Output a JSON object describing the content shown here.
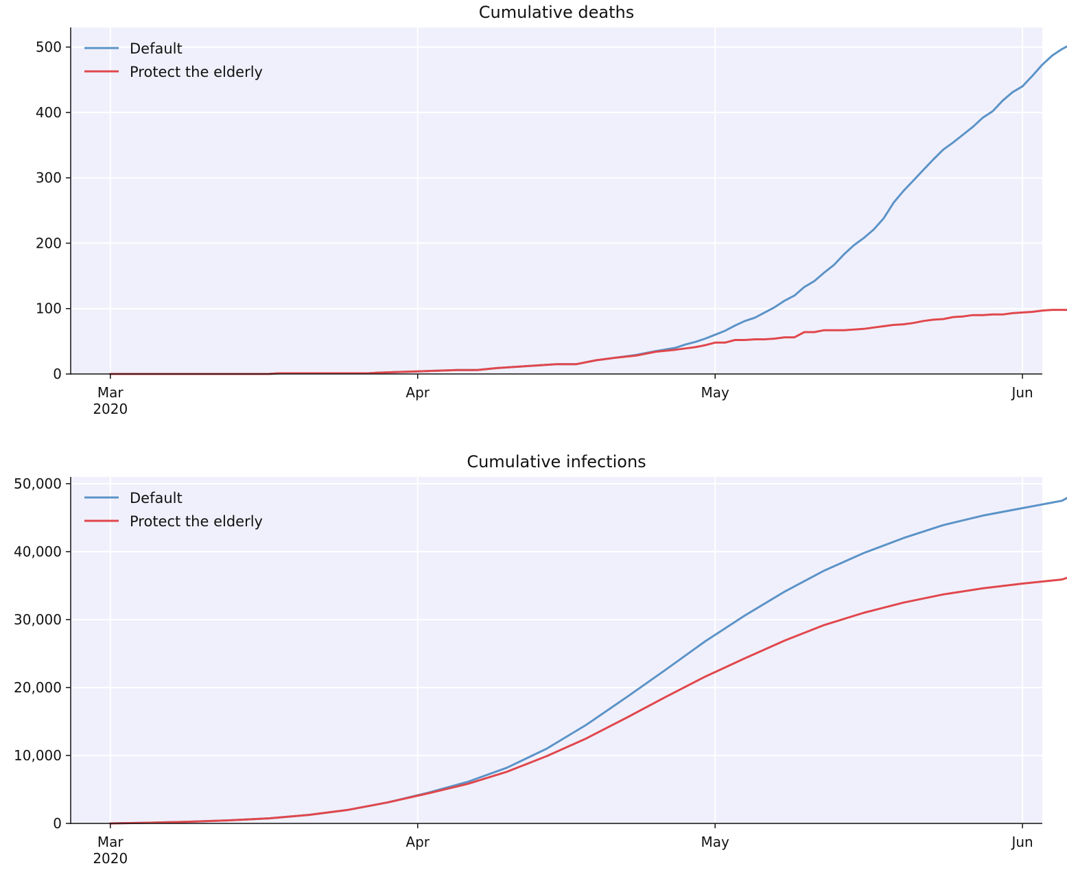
{
  "chart_data": [
    {
      "type": "line",
      "title": "Cumulative deaths",
      "xlabel": "",
      "ylabel": "",
      "x_tick_labels": [
        {
          "date": "2020-03-01",
          "label": "Mar",
          "sublabel": "2020"
        },
        {
          "date": "2020-04-01",
          "label": "Apr",
          "sublabel": ""
        },
        {
          "date": "2020-05-01",
          "label": "May",
          "sublabel": ""
        },
        {
          "date": "2020-06-01",
          "label": "Jun",
          "sublabel": ""
        }
      ],
      "y_ticks": [
        0,
        100,
        200,
        300,
        400,
        500
      ],
      "y_tick_labels": [
        "0",
        "100",
        "200",
        "300",
        "400",
        "500"
      ],
      "xlim": [
        "2020-02-26",
        "2020-06-03"
      ],
      "ylim": [
        0,
        530
      ],
      "grid": true,
      "legend_position": "top-left",
      "background": "#f0f0fc",
      "series": [
        {
          "name": "Default",
          "color": "#5b93c7",
          "points": [
            [
              "2020-03-01",
              0
            ],
            [
              "2020-03-09",
              0
            ],
            [
              "2020-03-17",
              0
            ],
            [
              "2020-03-18",
              1
            ],
            [
              "2020-03-27",
              1
            ],
            [
              "2020-03-28",
              2
            ],
            [
              "2020-03-30",
              3
            ],
            [
              "2020-04-01",
              4
            ],
            [
              "2020-04-03",
              5
            ],
            [
              "2020-04-05",
              6
            ],
            [
              "2020-04-07",
              6
            ],
            [
              "2020-04-09",
              9
            ],
            [
              "2020-04-11",
              11
            ],
            [
              "2020-04-13",
              13
            ],
            [
              "2020-04-15",
              15
            ],
            [
              "2020-04-17",
              15
            ],
            [
              "2020-04-19",
              21
            ],
            [
              "2020-04-21",
              25
            ],
            [
              "2020-04-23",
              29
            ],
            [
              "2020-04-25",
              35
            ],
            [
              "2020-04-27",
              40
            ],
            [
              "2020-04-28",
              45
            ],
            [
              "2020-04-29",
              49
            ],
            [
              "2020-04-30",
              54
            ],
            [
              "2020-05-01",
              60
            ],
            [
              "2020-05-02",
              66
            ],
            [
              "2020-05-03",
              74
            ],
            [
              "2020-05-04",
              81
            ],
            [
              "2020-05-05",
              86
            ],
            [
              "2020-05-06",
              94
            ],
            [
              "2020-05-07",
              102
            ],
            [
              "2020-05-08",
              112
            ],
            [
              "2020-05-09",
              120
            ],
            [
              "2020-05-10",
              133
            ],
            [
              "2020-05-11",
              142
            ],
            [
              "2020-05-12",
              155
            ],
            [
              "2020-05-13",
              167
            ],
            [
              "2020-05-14",
              183
            ],
            [
              "2020-05-15",
              197
            ],
            [
              "2020-05-16",
              208
            ],
            [
              "2020-05-17",
              221
            ],
            [
              "2020-05-18",
              238
            ],
            [
              "2020-05-19",
              262
            ],
            [
              "2020-05-20",
              280
            ],
            [
              "2020-05-21",
              296
            ],
            [
              "2020-05-22",
              312
            ],
            [
              "2020-05-23",
              328
            ],
            [
              "2020-05-24",
              343
            ],
            [
              "2020-05-25",
              354
            ],
            [
              "2020-05-26",
              366
            ],
            [
              "2020-05-27",
              378
            ],
            [
              "2020-05-28",
              392
            ],
            [
              "2020-05-29",
              402
            ],
            [
              "2020-05-30",
              418
            ],
            [
              "2020-05-31",
              431
            ],
            [
              "2020-06-01",
              440
            ],
            [
              "2020-06-02",
              456
            ],
            [
              "2020-06-03",
              473
            ],
            [
              "2020-06-04",
              487
            ],
            [
              "2020-06-05",
              497
            ],
            [
              "2020-06-06",
              505
            ]
          ]
        },
        {
          "name": "Protect the elderly",
          "color": "#e0474c",
          "points": [
            [
              "2020-03-01",
              0
            ],
            [
              "2020-03-09",
              0
            ],
            [
              "2020-03-17",
              0
            ],
            [
              "2020-03-18",
              1
            ],
            [
              "2020-03-27",
              1
            ],
            [
              "2020-03-28",
              2
            ],
            [
              "2020-03-30",
              3
            ],
            [
              "2020-04-01",
              4
            ],
            [
              "2020-04-03",
              5
            ],
            [
              "2020-04-05",
              6
            ],
            [
              "2020-04-07",
              6
            ],
            [
              "2020-04-09",
              9
            ],
            [
              "2020-04-11",
              11
            ],
            [
              "2020-04-13",
              13
            ],
            [
              "2020-04-15",
              15
            ],
            [
              "2020-04-17",
              15
            ],
            [
              "2020-04-19",
              21
            ],
            [
              "2020-04-21",
              25
            ],
            [
              "2020-04-23",
              28
            ],
            [
              "2020-04-25",
              34
            ],
            [
              "2020-04-27",
              37
            ],
            [
              "2020-04-28",
              39
            ],
            [
              "2020-04-29",
              41
            ],
            [
              "2020-04-30",
              44
            ],
            [
              "2020-05-01",
              48
            ],
            [
              "2020-05-02",
              48
            ],
            [
              "2020-05-03",
              52
            ],
            [
              "2020-05-04",
              52
            ],
            [
              "2020-05-05",
              53
            ],
            [
              "2020-05-06",
              53
            ],
            [
              "2020-05-07",
              54
            ],
            [
              "2020-05-08",
              56
            ],
            [
              "2020-05-09",
              56
            ],
            [
              "2020-05-10",
              64
            ],
            [
              "2020-05-11",
              64
            ],
            [
              "2020-05-12",
              67
            ],
            [
              "2020-05-13",
              67
            ],
            [
              "2020-05-14",
              67
            ],
            [
              "2020-05-15",
              68
            ],
            [
              "2020-05-16",
              69
            ],
            [
              "2020-05-17",
              71
            ],
            [
              "2020-05-18",
              73
            ],
            [
              "2020-05-19",
              75
            ],
            [
              "2020-05-20",
              76
            ],
            [
              "2020-05-21",
              78
            ],
            [
              "2020-05-22",
              81
            ],
            [
              "2020-05-23",
              83
            ],
            [
              "2020-05-24",
              84
            ],
            [
              "2020-05-25",
              87
            ],
            [
              "2020-05-26",
              88
            ],
            [
              "2020-05-27",
              90
            ],
            [
              "2020-05-28",
              90
            ],
            [
              "2020-05-29",
              91
            ],
            [
              "2020-05-30",
              91
            ],
            [
              "2020-05-31",
              93
            ],
            [
              "2020-06-01",
              94
            ],
            [
              "2020-06-02",
              95
            ],
            [
              "2020-06-03",
              97
            ],
            [
              "2020-06-04",
              98
            ],
            [
              "2020-06-05",
              98
            ],
            [
              "2020-06-06",
              98
            ]
          ]
        }
      ]
    },
    {
      "type": "line",
      "title": "Cumulative infections",
      "xlabel": "",
      "ylabel": "",
      "x_tick_labels": [
        {
          "date": "2020-03-01",
          "label": "Mar",
          "sublabel": "2020"
        },
        {
          "date": "2020-04-01",
          "label": "Apr",
          "sublabel": ""
        },
        {
          "date": "2020-05-01",
          "label": "May",
          "sublabel": ""
        },
        {
          "date": "2020-06-01",
          "label": "Jun",
          "sublabel": ""
        }
      ],
      "y_ticks": [
        0,
        10000,
        20000,
        30000,
        40000,
        50000
      ],
      "y_tick_labels": [
        "0",
        "10,000",
        "20,000",
        "30,000",
        "40,000",
        "50,000"
      ],
      "xlim": [
        "2020-02-26",
        "2020-06-03"
      ],
      "ylim": [
        0,
        51000
      ],
      "grid": true,
      "legend_position": "top-left",
      "background": "#f0f0fc",
      "series": [
        {
          "name": "Default",
          "color": "#5b93c7",
          "points": [
            [
              "2020-03-01",
              0
            ],
            [
              "2020-03-05",
              100
            ],
            [
              "2020-03-09",
              250
            ],
            [
              "2020-03-13",
              450
            ],
            [
              "2020-03-17",
              750
            ],
            [
              "2020-03-21",
              1250
            ],
            [
              "2020-03-25",
              2000
            ],
            [
              "2020-03-29",
              3100
            ],
            [
              "2020-04-02",
              4500
            ],
            [
              "2020-04-06",
              6100
            ],
            [
              "2020-04-10",
              8200
            ],
            [
              "2020-04-14",
              11000
            ],
            [
              "2020-04-18",
              14500
            ],
            [
              "2020-04-22",
              18500
            ],
            [
              "2020-04-26",
              22600
            ],
            [
              "2020-04-30",
              26800
            ],
            [
              "2020-05-04",
              30600
            ],
            [
              "2020-05-08",
              34100
            ],
            [
              "2020-05-12",
              37200
            ],
            [
              "2020-05-16",
              39800
            ],
            [
              "2020-05-20",
              42000
            ],
            [
              "2020-05-24",
              43900
            ],
            [
              "2020-05-28",
              45300
            ],
            [
              "2020-06-01",
              46400
            ],
            [
              "2020-06-05",
              47500
            ],
            [
              "2020-06-06",
              48300
            ]
          ]
        },
        {
          "name": "Protect the elderly",
          "color": "#e0474c",
          "points": [
            [
              "2020-03-01",
              0
            ],
            [
              "2020-03-05",
              100
            ],
            [
              "2020-03-09",
              250
            ],
            [
              "2020-03-13",
              450
            ],
            [
              "2020-03-17",
              750
            ],
            [
              "2020-03-21",
              1250
            ],
            [
              "2020-03-25",
              2000
            ],
            [
              "2020-03-29",
              3100
            ],
            [
              "2020-04-02",
              4400
            ],
            [
              "2020-04-06",
              5800
            ],
            [
              "2020-04-10",
              7600
            ],
            [
              "2020-04-14",
              9900
            ],
            [
              "2020-04-18",
              12500
            ],
            [
              "2020-04-22",
              15500
            ],
            [
              "2020-04-26",
              18600
            ],
            [
              "2020-04-30",
              21600
            ],
            [
              "2020-05-04",
              24300
            ],
            [
              "2020-05-08",
              26900
            ],
            [
              "2020-05-12",
              29200
            ],
            [
              "2020-05-16",
              31000
            ],
            [
              "2020-05-20",
              32500
            ],
            [
              "2020-05-24",
              33700
            ],
            [
              "2020-05-28",
              34600
            ],
            [
              "2020-06-01",
              35300
            ],
            [
              "2020-06-05",
              35900
            ],
            [
              "2020-06-06",
              36400
            ]
          ]
        }
      ]
    }
  ]
}
